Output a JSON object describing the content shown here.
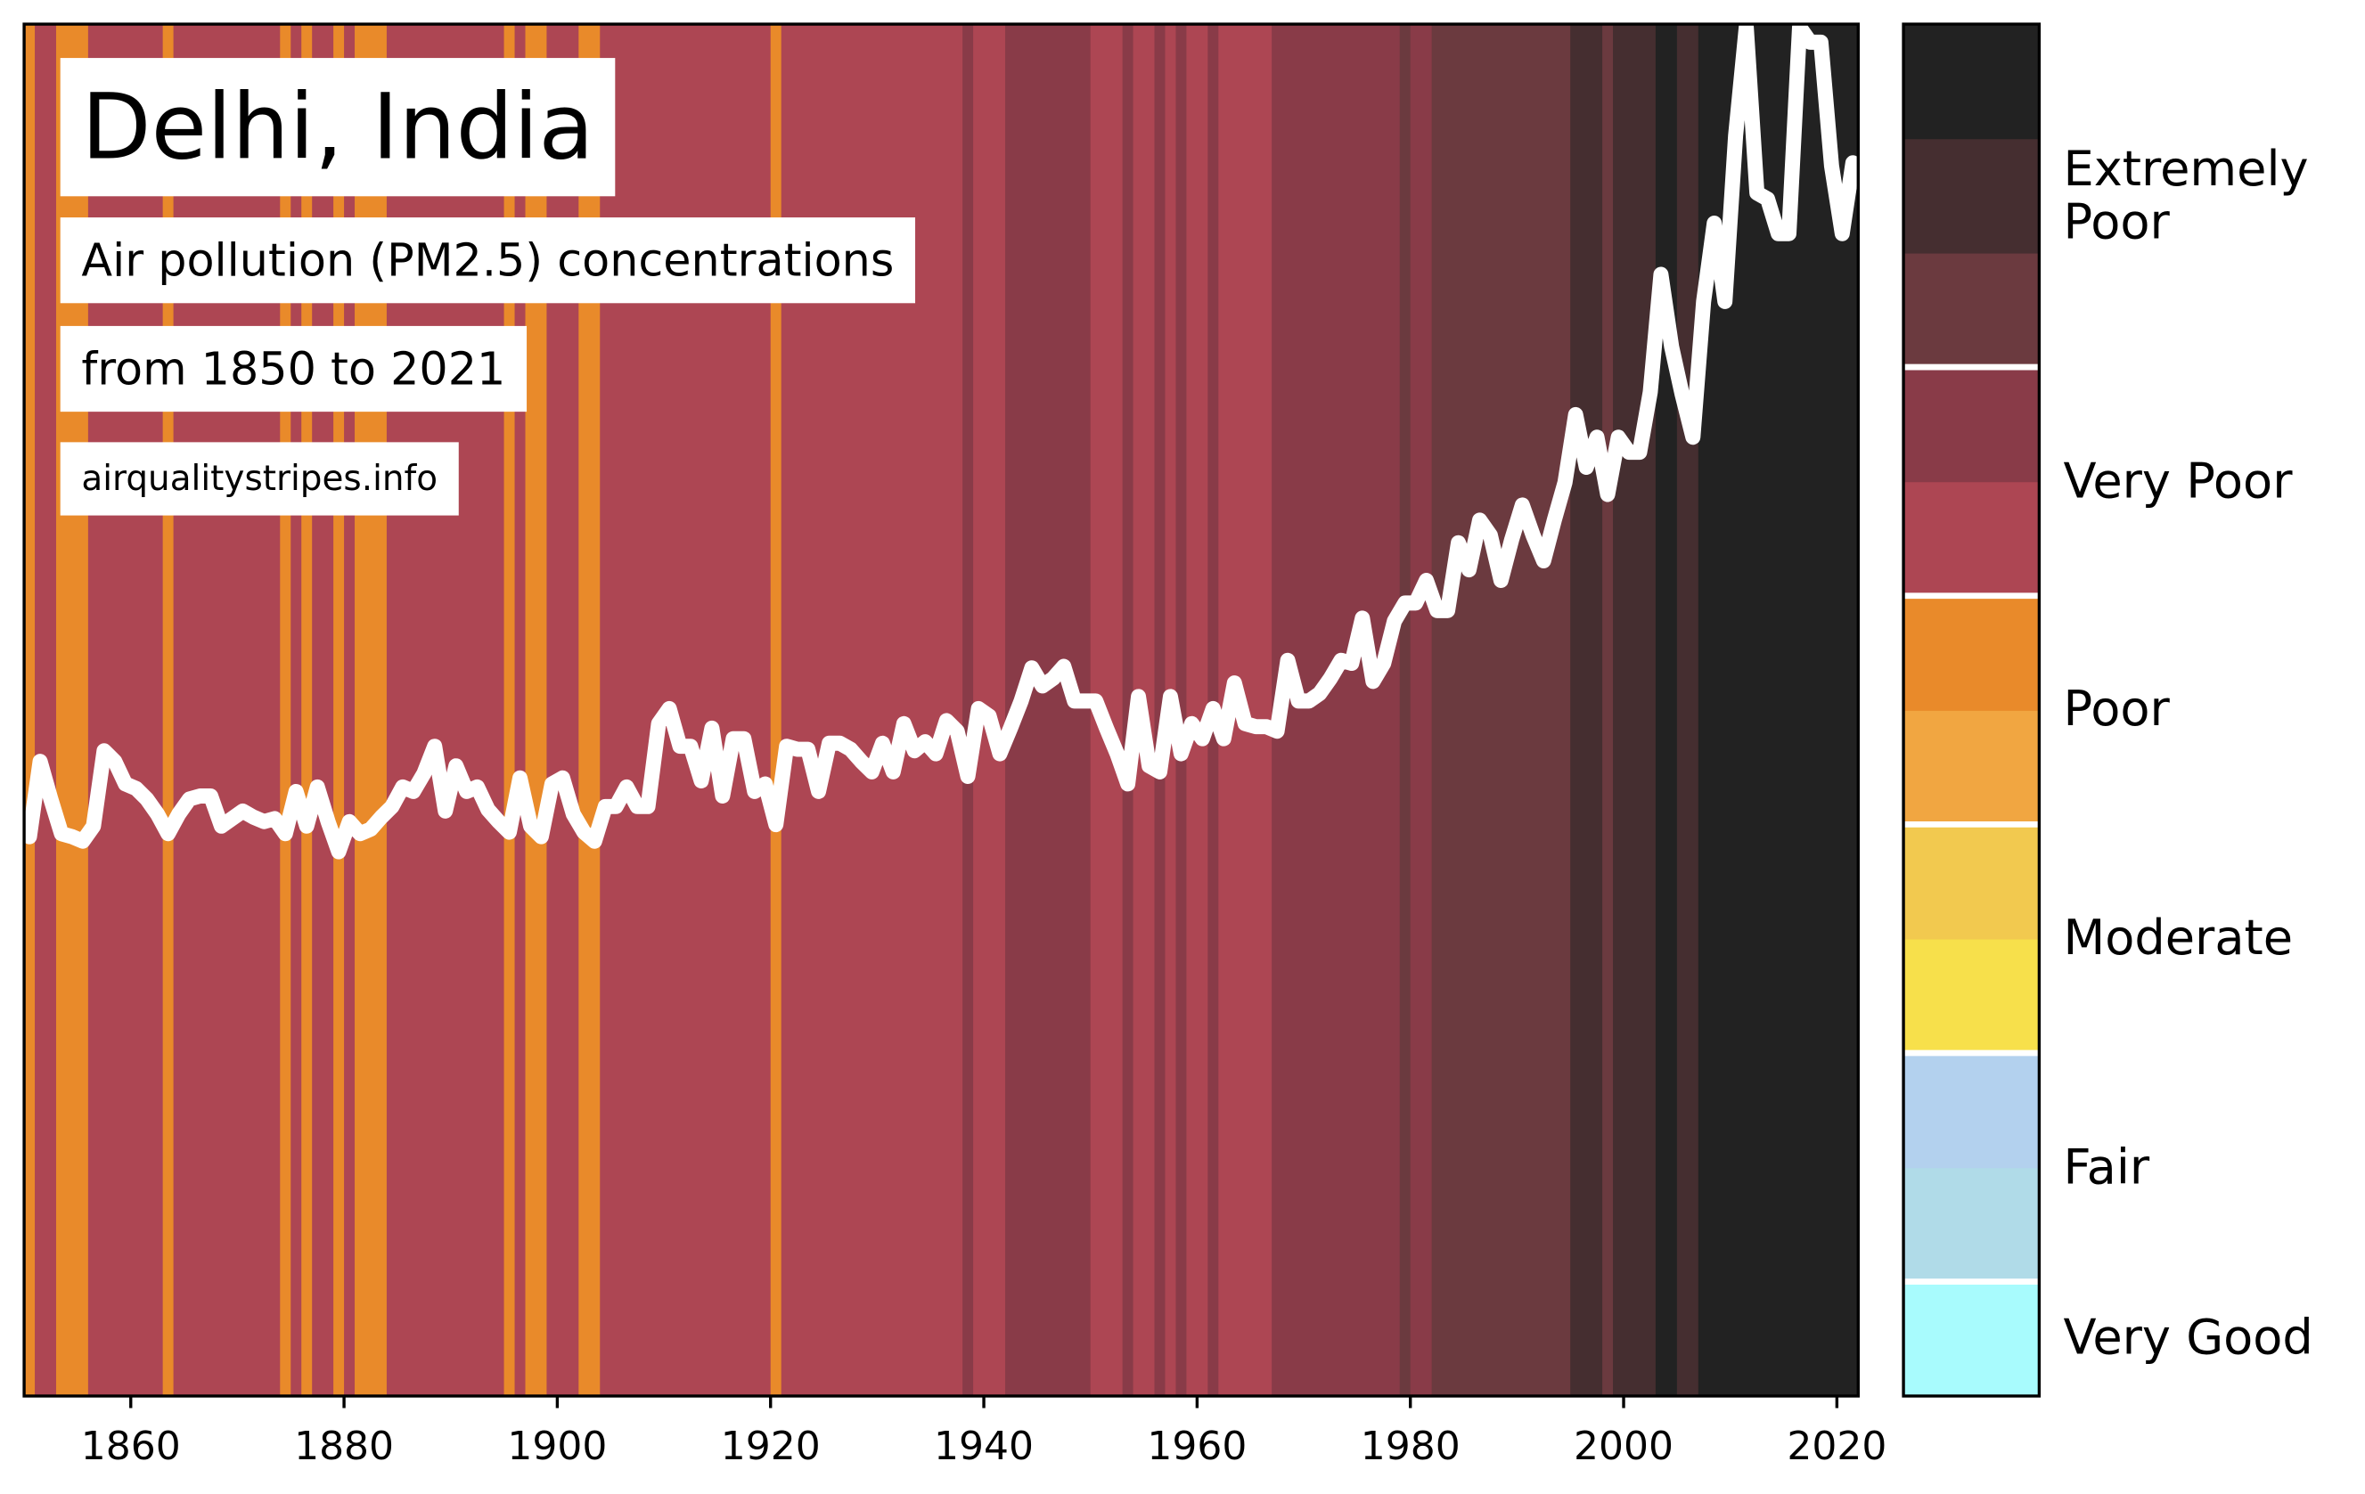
{
  "chart_data": {
    "type": "stripes-line",
    "title": "Delhi, India",
    "subtitle": "Air pollution (PM2.5) concentrations",
    "period": "from 1850 to 2021",
    "source": "airqualitystripes.info",
    "line_color": "#ffffff",
    "xlim": [
      1850,
      2022
    ],
    "xticks": [
      1860,
      1880,
      1900,
      1920,
      1940,
      1960,
      1980,
      2000,
      2020
    ],
    "ylim": [
      0,
      91
    ],
    "x": [
      1850,
      1851,
      1852,
      1853,
      1854,
      1855,
      1856,
      1857,
      1858,
      1859,
      1860,
      1861,
      1862,
      1863,
      1864,
      1865,
      1866,
      1867,
      1868,
      1869,
      1870,
      1871,
      1872,
      1873,
      1874,
      1875,
      1876,
      1877,
      1878,
      1879,
      1880,
      1881,
      1882,
      1883,
      1884,
      1885,
      1886,
      1887,
      1888,
      1889,
      1890,
      1891,
      1892,
      1893,
      1894,
      1895,
      1896,
      1897,
      1898,
      1899,
      1900,
      1901,
      1902,
      1903,
      1904,
      1905,
      1906,
      1907,
      1908,
      1909,
      1910,
      1911,
      1912,
      1913,
      1914,
      1915,
      1916,
      1917,
      1918,
      1919,
      1920,
      1921,
      1922,
      1923,
      1924,
      1925,
      1926,
      1927,
      1928,
      1929,
      1930,
      1931,
      1932,
      1933,
      1934,
      1935,
      1936,
      1937,
      1938,
      1939,
      1940,
      1941,
      1942,
      1943,
      1944,
      1945,
      1946,
      1947,
      1948,
      1949,
      1950,
      1951,
      1952,
      1953,
      1954,
      1955,
      1956,
      1957,
      1958,
      1959,
      1960,
      1961,
      1962,
      1963,
      1964,
      1965,
      1966,
      1967,
      1968,
      1969,
      1970,
      1971,
      1972,
      1973,
      1974,
      1975,
      1976,
      1977,
      1978,
      1979,
      1980,
      1981,
      1982,
      1983,
      1984,
      1985,
      1986,
      1987,
      1988,
      1989,
      1990,
      1991,
      1992,
      1993,
      1994,
      1995,
      1996,
      1997,
      1998,
      1999,
      2000,
      2001,
      2002,
      2003,
      2004,
      2005,
      2006,
      2007,
      2008,
      2009,
      2010,
      2011,
      2012,
      2013,
      2014,
      2015,
      2016,
      2017,
      2018,
      2019,
      2020,
      2021
    ],
    "values": [
      37.1,
      42.1,
      39.6,
      37.3,
      37.1,
      36.8,
      37.8,
      42.8,
      42.1,
      40.6,
      40.3,
      39.6,
      38.6,
      37.3,
      38.6,
      39.6,
      39.8,
      39.8,
      37.8,
      38.3,
      38.8,
      38.4,
      38.1,
      38.3,
      37.3,
      40.1,
      37.8,
      40.4,
      38.1,
      36.1,
      38.1,
      37.3,
      37.6,
      38.4,
      39.1,
      40.4,
      40.1,
      41.3,
      43.1,
      38.8,
      41.8,
      40.1,
      40.4,
      38.9,
      38.1,
      37.4,
      41.0,
      37.8,
      37.1,
      40.6,
      41.0,
      38.6,
      37.4,
      36.8,
      39.1,
      39.1,
      40.4,
      39.1,
      39.1,
      44.6,
      45.6,
      43.1,
      43.1,
      40.8,
      44.3,
      39.8,
      43.6,
      43.6,
      40.1,
      40.6,
      37.9,
      43.1,
      42.9,
      42.9,
      40.1,
      43.3,
      43.3,
      42.9,
      42.1,
      41.4,
      43.3,
      41.4,
      44.6,
      42.8,
      43.4,
      42.6,
      44.8,
      44.1,
      41.1,
      45.6,
      45.1,
      42.6,
      44.3,
      46.1,
      48.3,
      47.1,
      47.6,
      48.4,
      46.1,
      46.1,
      46.1,
      44.3,
      42.6,
      40.6,
      46.4,
      41.8,
      41.4,
      46.4,
      42.6,
      44.6,
      43.6,
      45.6,
      43.6,
      47.3,
      44.6,
      44.4,
      44.4,
      44.1,
      48.8,
      46.1,
      46.1,
      46.6,
      47.6,
      48.8,
      48.6,
      51.6,
      47.4,
      48.6,
      51.4,
      52.6,
      52.6,
      54.1,
      52.1,
      52.1,
      56.6,
      54.8,
      58.1,
      57.1,
      54.1,
      56.8,
      59.1,
      57.1,
      55.4,
      58.1,
      60.6,
      65.1,
      61.6,
      63.6,
      59.8,
      63.6,
      62.6,
      62.6,
      66.6,
      74.4,
      69.6,
      66.4,
      63.6,
      72.6,
      77.8,
      72.6,
      83.6,
      90.8,
      79.8,
      79.4,
      77.1,
      77.1,
      90.8,
      89.8,
      89.8,
      81.6,
      77.1,
      81.8
    ],
    "stripes": [
      {
        "from": 1850,
        "to": 1851,
        "color": "#e98a2a"
      },
      {
        "from": 1851,
        "to": 1853,
        "color": "#ad4653"
      },
      {
        "from": 1853,
        "to": 1856,
        "color": "#e98a2a"
      },
      {
        "from": 1856,
        "to": 1863,
        "color": "#ad4653"
      },
      {
        "from": 1863,
        "to": 1864,
        "color": "#e98a2a"
      },
      {
        "from": 1864,
        "to": 1874,
        "color": "#ad4653"
      },
      {
        "from": 1874,
        "to": 1875,
        "color": "#e98a2a"
      },
      {
        "from": 1875,
        "to": 1876,
        "color": "#ad4653"
      },
      {
        "from": 1876,
        "to": 1877,
        "color": "#e98a2a"
      },
      {
        "from": 1877,
        "to": 1879,
        "color": "#ad4653"
      },
      {
        "from": 1879,
        "to": 1880,
        "color": "#e98a2a"
      },
      {
        "from": 1880,
        "to": 1881,
        "color": "#ad4653"
      },
      {
        "from": 1881,
        "to": 1884,
        "color": "#e98a2a"
      },
      {
        "from": 1884,
        "to": 1895,
        "color": "#ad4653"
      },
      {
        "from": 1895,
        "to": 1896,
        "color": "#e98a2a"
      },
      {
        "from": 1896,
        "to": 1897,
        "color": "#ad4653"
      },
      {
        "from": 1897,
        "to": 1899,
        "color": "#e98a2a"
      },
      {
        "from": 1899,
        "to": 1902,
        "color": "#ad4653"
      },
      {
        "from": 1902,
        "to": 1904,
        "color": "#e98a2a"
      },
      {
        "from": 1904,
        "to": 1920,
        "color": "#ad4653"
      },
      {
        "from": 1920,
        "to": 1921,
        "color": "#e98a2a"
      },
      {
        "from": 1921,
        "to": 1938,
        "color": "#ad4653"
      },
      {
        "from": 1938,
        "to": 1939,
        "color": "#893b48"
      },
      {
        "from": 1939,
        "to": 1942,
        "color": "#ad4653"
      },
      {
        "from": 1942,
        "to": 1950,
        "color": "#893b48"
      },
      {
        "from": 1950,
        "to": 1953,
        "color": "#ad4653"
      },
      {
        "from": 1953,
        "to": 1954,
        "color": "#893b48"
      },
      {
        "from": 1954,
        "to": 1956,
        "color": "#ad4653"
      },
      {
        "from": 1956,
        "to": 1957,
        "color": "#893b48"
      },
      {
        "from": 1957,
        "to": 1958,
        "color": "#ad4653"
      },
      {
        "from": 1958,
        "to": 1959,
        "color": "#893b48"
      },
      {
        "from": 1959,
        "to": 1961,
        "color": "#ad4653"
      },
      {
        "from": 1961,
        "to": 1962,
        "color": "#893b48"
      },
      {
        "from": 1962,
        "to": 1967,
        "color": "#ad4653"
      },
      {
        "from": 1967,
        "to": 1979,
        "color": "#893b48"
      },
      {
        "from": 1979,
        "to": 1980,
        "color": "#6b3a3f"
      },
      {
        "from": 1980,
        "to": 1982,
        "color": "#893b48"
      },
      {
        "from": 1982,
        "to": 1995,
        "color": "#6b3a3f"
      },
      {
        "from": 1995,
        "to": 1998,
        "color": "#452e30"
      },
      {
        "from": 1998,
        "to": 1999,
        "color": "#6b3a3f"
      },
      {
        "from": 1999,
        "to": 2003,
        "color": "#452e30"
      },
      {
        "from": 2003,
        "to": 2005,
        "color": "#222222"
      },
      {
        "from": 2005,
        "to": 2007,
        "color": "#452e30"
      },
      {
        "from": 2007,
        "to": 2022,
        "color": "#222222"
      }
    ],
    "colorbar": [
      {
        "label": "Very Good",
        "colors": [
          "#a8fbfd"
        ]
      },
      {
        "label": "Fair",
        "colors": [
          "#b0dbe8",
          "#b3d1ee"
        ]
      },
      {
        "label": "Moderate",
        "colors": [
          "#f7e04b",
          "#f2c94f"
        ]
      },
      {
        "label": "Poor",
        "colors": [
          "#f1a641",
          "#e98a2a"
        ]
      },
      {
        "label": "Very Poor",
        "colors": [
          "#ad4653",
          "#893b48"
        ]
      },
      {
        "label": "Extremely Poor",
        "colors": [
          "#6b3a3f",
          "#452e30",
          "#222222"
        ]
      }
    ]
  }
}
